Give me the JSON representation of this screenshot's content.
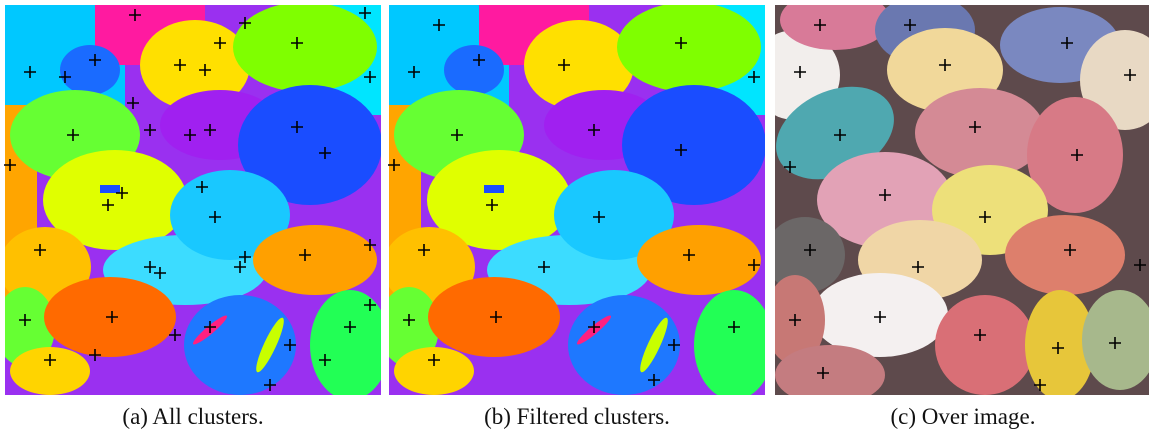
{
  "figure": {
    "captions": [
      "(a) All clusters.",
      "(b) Filtered clusters.",
      "(c) Over image."
    ]
  }
}
